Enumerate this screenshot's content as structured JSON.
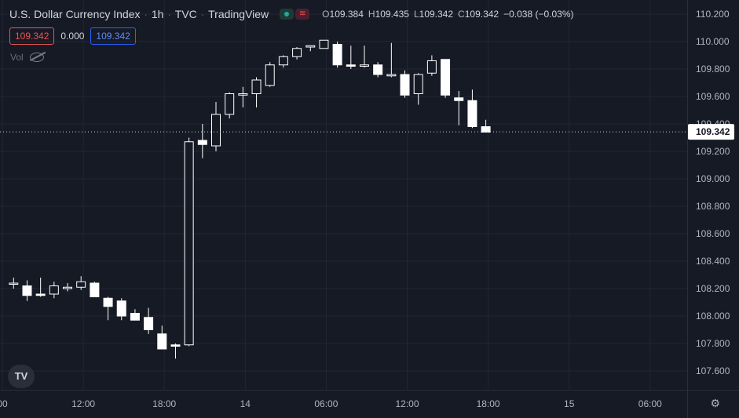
{
  "legend": {
    "symbol": "U.S. Dollar Currency Index",
    "interval": "1h",
    "exchange": "TVC",
    "source": "TradingView",
    "ohlc": [
      {
        "k": "O",
        "v": "109.384"
      },
      {
        "k": "H",
        "v": "109.435"
      },
      {
        "k": "L",
        "v": "109.342"
      },
      {
        "k": "C",
        "v": "109.342"
      }
    ],
    "change": "−0.038 (−0.03%)",
    "sell": "109.342",
    "spread": "0.000",
    "buy": "109.342",
    "vol_label": "Vol"
  },
  "logo_text": "TV",
  "chart_data": {
    "type": "candlestick",
    "y_range": [
      107.52,
      110.24
    ],
    "y_ticks": [
      "110.200",
      "110.000",
      "109.800",
      "109.600",
      "109.400",
      "109.200",
      "109.000",
      "108.800",
      "108.600",
      "108.400",
      "108.200",
      "108.000",
      "107.800",
      "107.600"
    ],
    "x_ticks": [
      "00",
      "12:00",
      "18:00",
      "14",
      "06:00",
      "12:00",
      "18:00",
      "15",
      "06:00"
    ],
    "current_price": "109.342",
    "grid": true,
    "colors": {
      "background": "#161a25",
      "grid": "#232632",
      "up": "#ffffff",
      "down": "#ffffff",
      "text": "#b2b5be"
    },
    "candles": [
      {
        "o": 108.24,
        "h": 108.28,
        "l": 108.2,
        "c": 108.24
      },
      {
        "o": 108.22,
        "h": 108.26,
        "l": 108.11,
        "c": 108.15
      },
      {
        "o": 108.16,
        "h": 108.28,
        "l": 108.14,
        "c": 108.15
      },
      {
        "o": 108.16,
        "h": 108.25,
        "l": 108.13,
        "c": 108.22
      },
      {
        "o": 108.2,
        "h": 108.24,
        "l": 108.18,
        "c": 108.21
      },
      {
        "o": 108.21,
        "h": 108.29,
        "l": 108.19,
        "c": 108.25
      },
      {
        "o": 108.24,
        "h": 108.25,
        "l": 108.14,
        "c": 108.14
      },
      {
        "o": 108.13,
        "h": 108.14,
        "l": 107.97,
        "c": 108.07
      },
      {
        "o": 108.11,
        "h": 108.13,
        "l": 107.97,
        "c": 108.0
      },
      {
        "o": 108.02,
        "h": 108.05,
        "l": 107.97,
        "c": 107.97
      },
      {
        "o": 107.99,
        "h": 108.06,
        "l": 107.87,
        "c": 107.9
      },
      {
        "o": 107.87,
        "h": 107.93,
        "l": 107.76,
        "c": 107.76
      },
      {
        "o": 107.79,
        "h": 107.8,
        "l": 107.69,
        "c": 107.78
      },
      {
        "o": 107.79,
        "h": 109.3,
        "l": 107.78,
        "c": 109.27
      },
      {
        "o": 109.28,
        "h": 109.4,
        "l": 109.15,
        "c": 109.25
      },
      {
        "o": 109.24,
        "h": 109.56,
        "l": 109.2,
        "c": 109.47
      },
      {
        "o": 109.47,
        "h": 109.63,
        "l": 109.44,
        "c": 109.62
      },
      {
        "o": 109.61,
        "h": 109.67,
        "l": 109.52,
        "c": 109.62
      },
      {
        "o": 109.62,
        "h": 109.74,
        "l": 109.52,
        "c": 109.72
      },
      {
        "o": 109.68,
        "h": 109.85,
        "l": 109.67,
        "c": 109.83
      },
      {
        "o": 109.83,
        "h": 109.9,
        "l": 109.81,
        "c": 109.89
      },
      {
        "o": 109.89,
        "h": 109.96,
        "l": 109.87,
        "c": 109.95
      },
      {
        "o": 109.96,
        "h": 109.97,
        "l": 109.93,
        "c": 109.97
      },
      {
        "o": 109.95,
        "h": 110.01,
        "l": 109.95,
        "c": 110.01
      },
      {
        "o": 109.98,
        "h": 110.0,
        "l": 109.81,
        "c": 109.83
      },
      {
        "o": 109.83,
        "h": 109.97,
        "l": 109.8,
        "c": 109.82
      },
      {
        "o": 109.82,
        "h": 109.97,
        "l": 109.81,
        "c": 109.83
      },
      {
        "o": 109.83,
        "h": 109.85,
        "l": 109.74,
        "c": 109.76
      },
      {
        "o": 109.75,
        "h": 109.99,
        "l": 109.74,
        "c": 109.76
      },
      {
        "o": 109.76,
        "h": 109.79,
        "l": 109.59,
        "c": 109.61
      },
      {
        "o": 109.62,
        "h": 109.77,
        "l": 109.54,
        "c": 109.76
      },
      {
        "o": 109.77,
        "h": 109.9,
        "l": 109.75,
        "c": 109.86
      },
      {
        "o": 109.87,
        "h": 109.87,
        "l": 109.59,
        "c": 109.61
      },
      {
        "o": 109.59,
        "h": 109.64,
        "l": 109.39,
        "c": 109.57
      },
      {
        "o": 109.57,
        "h": 109.65,
        "l": 109.37,
        "c": 109.38
      },
      {
        "o": 109.38,
        "h": 109.43,
        "l": 109.34,
        "c": 109.34
      }
    ]
  }
}
